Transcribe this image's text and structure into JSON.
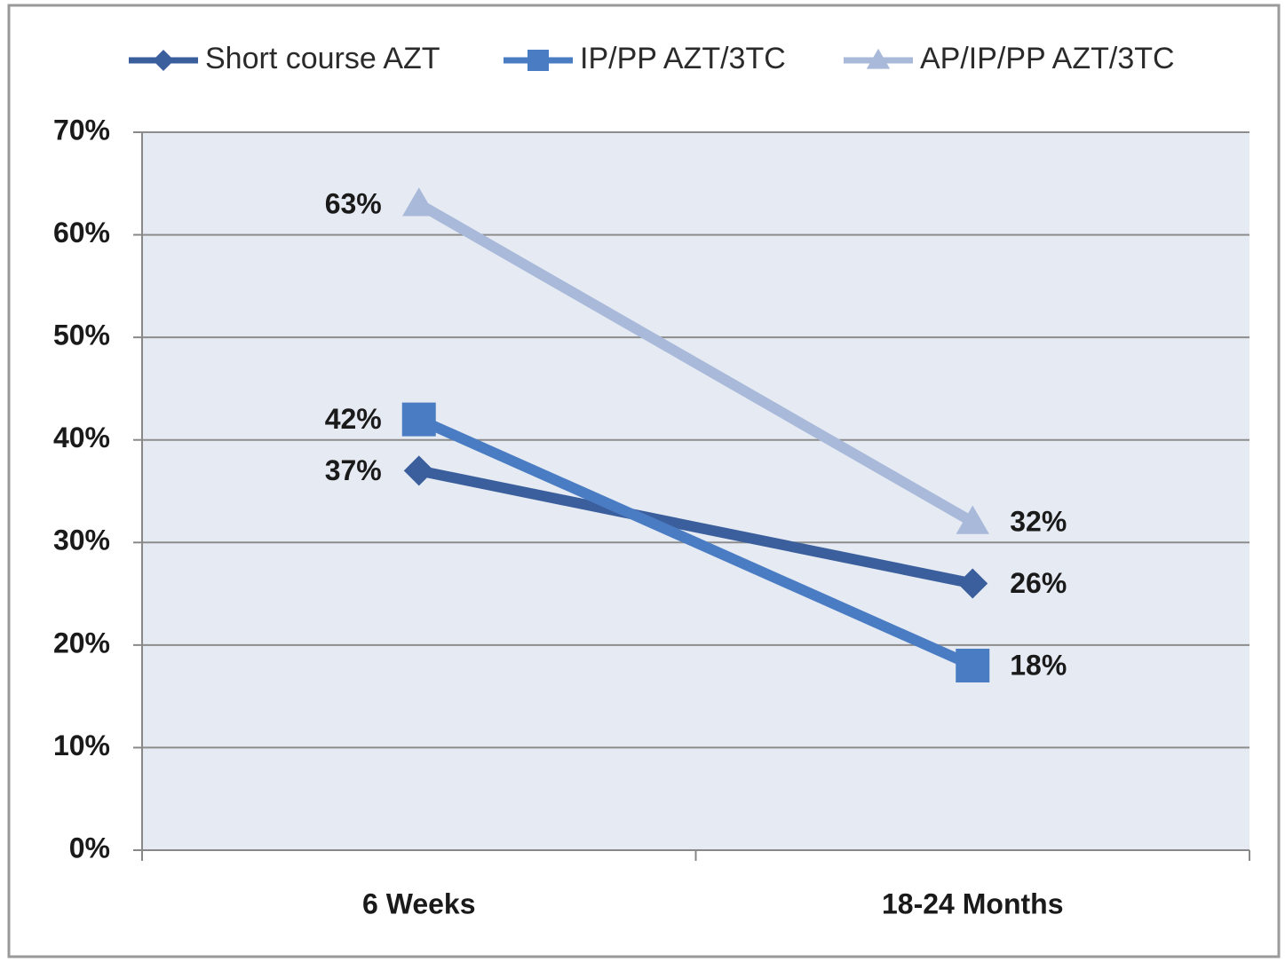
{
  "chart_data": {
    "type": "line",
    "categories": [
      "6 Weeks",
      "18-24 Months"
    ],
    "series": [
      {
        "name": "Short course AZT",
        "color": "#3b5f9d",
        "marker": "diamond",
        "values": [
          37,
          26
        ],
        "value_labels": [
          "37%",
          "26%"
        ]
      },
      {
        "name": "IP/PP AZT/3TC",
        "color": "#4a7cc3",
        "marker": "square",
        "values": [
          42,
          18
        ],
        "value_labels": [
          "42%",
          "18%"
        ]
      },
      {
        "name": "AP/IP/PP AZT/3TC",
        "color": "#a9b9da",
        "marker": "triangle",
        "values": [
          63,
          32
        ],
        "value_labels": [
          "63%",
          "32%"
        ]
      }
    ],
    "ylim": [
      0,
      70
    ],
    "yticks": [
      {
        "value": 0,
        "label": "0%"
      },
      {
        "value": 10,
        "label": "10%"
      },
      {
        "value": 20,
        "label": "20%"
      },
      {
        "value": 30,
        "label": "30%"
      },
      {
        "value": 40,
        "label": "40%"
      },
      {
        "value": 50,
        "label": "50%"
      },
      {
        "value": 60,
        "label": "60%"
      },
      {
        "value": 70,
        "label": "70%"
      }
    ],
    "grid": true,
    "legend": "top"
  }
}
